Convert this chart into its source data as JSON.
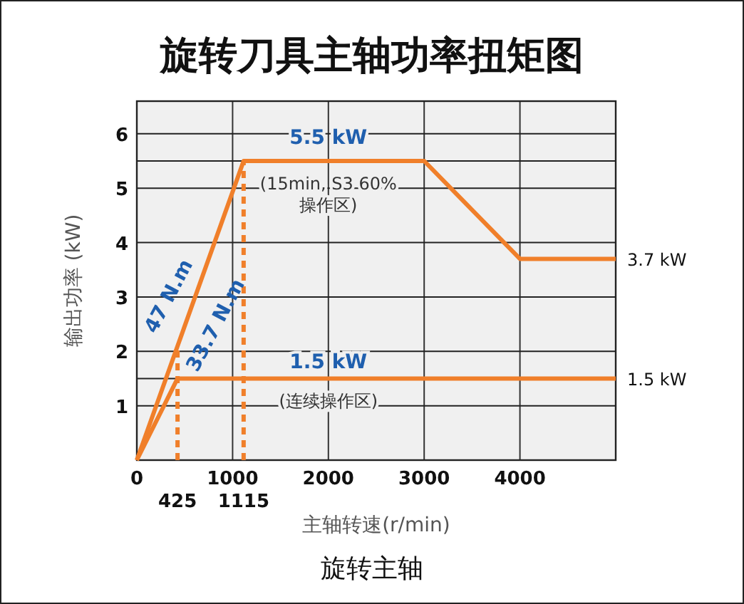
{
  "chart_data": {
    "type": "line",
    "title": "旋转刀具主轴功率扭矩图",
    "xlabel": "主轴转速(r/min)",
    "ylabel": "输出功率 (kW)",
    "xlim": [
      0,
      5000
    ],
    "ylim": [
      0,
      6.6
    ],
    "xticks": [
      0,
      1000,
      2000,
      3000,
      4000
    ],
    "yticks": [
      {
        "value": 0,
        "label": null
      },
      1,
      {
        "value": 1.5,
        "label": null
      },
      2,
      3,
      4,
      5,
      {
        "value": 5.5,
        "label": null
      },
      6
    ],
    "grid": true,
    "marker": "none",
    "line_style": "solid",
    "series": [
      {
        "color": "#f07f2a",
        "x": [
          0,
          1115,
          3000,
          4000,
          5000
        ],
        "values": [
          0,
          5.5,
          5.5,
          3.7,
          3.7
        ]
      },
      {
        "color": "#f07f2a",
        "x": [
          0,
          425,
          5000
        ],
        "values": [
          0,
          1.5,
          1.5
        ]
      }
    ],
    "ref_lines": [
      {
        "axis": "x",
        "value": 425,
        "label": "425",
        "color": "#f07f2a",
        "line_style": "dashed"
      },
      {
        "axis": "x",
        "value": 1115,
        "label": "1115",
        "color": "#f07f2a",
        "line_style": "dashed"
      }
    ],
    "annotations": [
      {
        "text": "5.5 kW",
        "x": 2000,
        "y": 5.5
      },
      {
        "text": "(15min, S3 60% 操作区)",
        "x": 2000,
        "y": 5.5
      },
      {
        "text": "47 N.m",
        "x": 600,
        "y": 2.96
      },
      {
        "text": "33.7 N.m",
        "x": 425,
        "y": 1.5
      },
      {
        "text": "1.5 kW",
        "x": 2000,
        "y": 1.5
      },
      {
        "text": "(连续操作区)",
        "x": 2000,
        "y": 1.5
      },
      {
        "text": "3.7 kW",
        "x": 5000,
        "y": 3.7
      },
      {
        "text": "1.5 kW",
        "x": 5000,
        "y": 1.5
      },
      "旋转主轴"
    ]
  }
}
